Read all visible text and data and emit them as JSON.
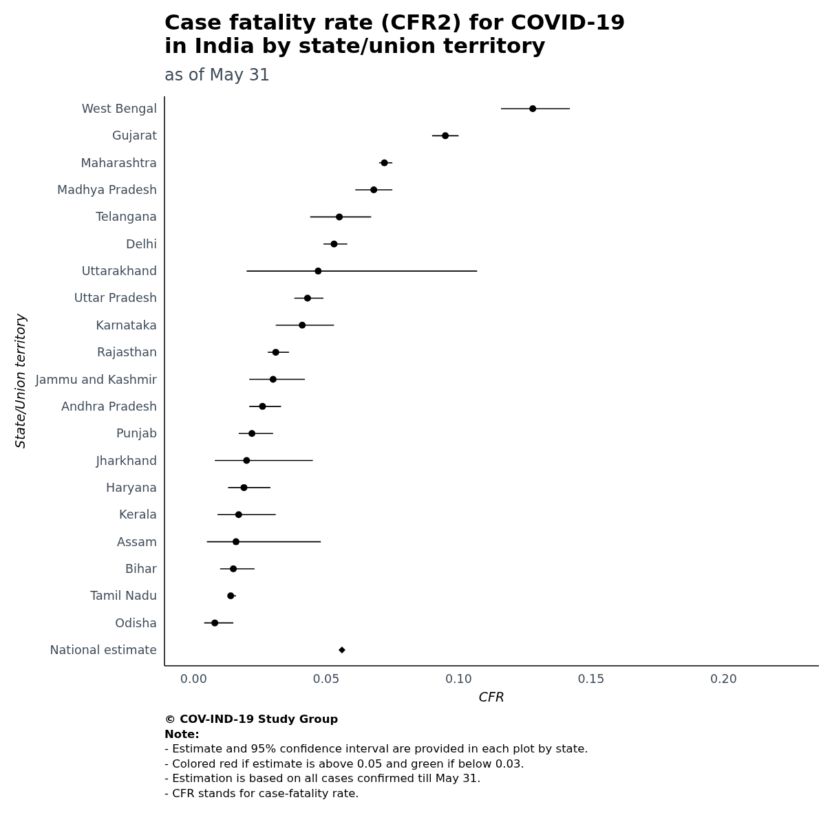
{
  "chart_data": {
    "type": "scatter",
    "orientation": "horizontal",
    "title": "Case fatality rate (CFR2) for COVID-19\nin India by state/union territory",
    "subtitle": "as of May 31",
    "xlabel": "CFR",
    "ylabel": "State/Union territory",
    "categories": [
      "West Bengal",
      "Gujarat",
      "Maharashtra",
      "Madhya Pradesh",
      "Telangana",
      "Delhi",
      "Uttarakhand",
      "Uttar Pradesh",
      "Karnataka",
      "Rajasthan",
      "Jammu and Kashmir",
      "Andhra Pradesh",
      "Punjab",
      "Jharkhand",
      "Haryana",
      "Kerala",
      "Assam",
      "Bihar",
      "Tamil Nadu",
      "Odisha",
      "National estimate"
    ],
    "series": [
      {
        "color": "#000000",
        "marker": "circle",
        "values": [
          0.128,
          0.095,
          0.072,
          0.068,
          0.055,
          0.053,
          0.047,
          0.043,
          0.041,
          0.031,
          0.03,
          0.026,
          0.022,
          0.02,
          0.019,
          0.017,
          0.016,
          0.015,
          0.014,
          0.008,
          null
        ],
        "errors": [
          [
            0.116,
            0.142
          ],
          [
            0.09,
            0.1
          ],
          [
            0.07,
            0.075
          ],
          [
            0.061,
            0.075
          ],
          [
            0.044,
            0.067
          ],
          [
            0.049,
            0.058
          ],
          [
            0.02,
            0.107
          ],
          [
            0.038,
            0.049
          ],
          [
            0.031,
            0.053
          ],
          [
            0.028,
            0.036
          ],
          [
            0.021,
            0.042
          ],
          [
            0.021,
            0.033
          ],
          [
            0.017,
            0.03
          ],
          [
            0.008,
            0.045
          ],
          [
            0.013,
            0.029
          ],
          [
            0.009,
            0.031
          ],
          [
            0.005,
            0.048
          ],
          [
            0.01,
            0.023
          ],
          [
            0.013,
            0.016
          ],
          [
            0.004,
            0.015
          ],
          null
        ]
      },
      {
        "color": "#000000",
        "marker": "diamond",
        "values": [
          null,
          null,
          null,
          null,
          null,
          null,
          null,
          null,
          null,
          null,
          null,
          null,
          null,
          null,
          null,
          null,
          null,
          null,
          null,
          null,
          0.056
        ]
      }
    ],
    "xlim": [
      -0.011,
      0.236
    ],
    "xticks": [
      {
        "value": 0,
        "label": "0.00"
      },
      {
        "value": 0.05,
        "label": "0.05"
      },
      {
        "value": 0.1,
        "label": "0.10"
      },
      {
        "value": 0.15,
        "label": "0.15"
      },
      {
        "value": 0.2,
        "label": "0.20"
      }
    ],
    "grid": false,
    "annotations": [
      "© COV-IND-19 Study Group",
      "Note:",
      "- Estimate and 95% confidence interval are provided in each plot by state.",
      "- Colored red if estimate is above 0.05 and green if below 0.03.",
      "- Estimation is based on all cases confirmed till May 31.",
      "- CFR stands for case-fatality rate."
    ]
  }
}
